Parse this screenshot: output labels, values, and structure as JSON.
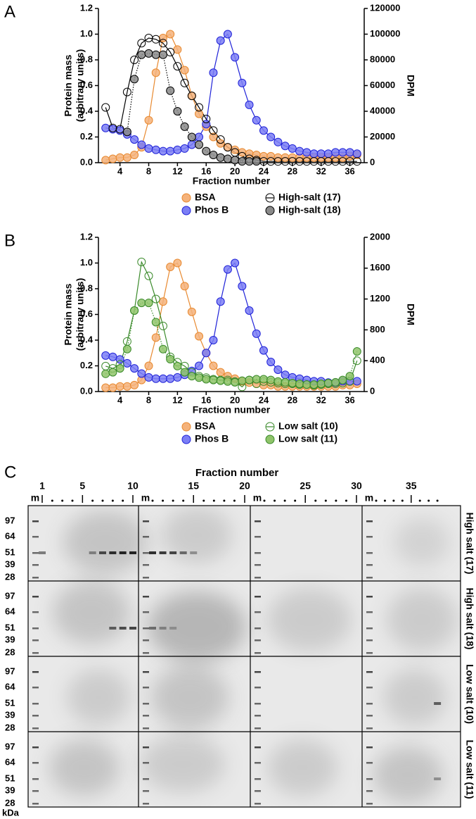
{
  "chart_data": [
    {
      "type": "line",
      "panel": "A",
      "xlabel": "Fraction number",
      "ylabel": [
        "Protein mass",
        "(arbitrary units)"
      ],
      "y2label": "DPM",
      "xlim": [
        1,
        38
      ],
      "xticks": [
        4,
        8,
        12,
        16,
        20,
        24,
        28,
        32,
        36
      ],
      "ylim": [
        0,
        1.2
      ],
      "yticks": [
        {
          "value": 0,
          "label": "0.0"
        },
        0.2,
        0.4,
        0.6,
        0.8,
        {
          "value": 1,
          "label": "1.0"
        },
        1.2
      ],
      "y2lim": [
        0,
        120000
      ],
      "y2ticks": [
        0,
        20000,
        40000,
        60000,
        80000,
        100000,
        120000
      ],
      "x": [
        2,
        3,
        4,
        5,
        6,
        7,
        8,
        9,
        10,
        11,
        12,
        13,
        14,
        15,
        16,
        17,
        18,
        19,
        20,
        21,
        22,
        23,
        24,
        25,
        26,
        27,
        28,
        29,
        30,
        31,
        32,
        33,
        34,
        35,
        36,
        37
      ],
      "series": [
        {
          "name": "BSA",
          "color": "#e8892f",
          "fill": "#f5b27a",
          "values": [
            0.02,
            0.03,
            0.04,
            0.04,
            0.06,
            0.12,
            0.33,
            0.7,
            0.97,
            1.0,
            0.88,
            0.72,
            0.52,
            0.38,
            0.28,
            0.2,
            0.15,
            0.12,
            0.1,
            0.08,
            0.07,
            0.06,
            0.05,
            0.05,
            0.04,
            0.04,
            0.04,
            0.04,
            0.04,
            0.04,
            0.04,
            0.04,
            0.04,
            0.04,
            0.05,
            0.06
          ]
        },
        {
          "name": "Phos B",
          "color": "#1f22d8",
          "fill": "#7b7ef5",
          "values": [
            0.27,
            0.26,
            0.25,
            0.22,
            0.18,
            0.14,
            0.11,
            0.1,
            0.09,
            0.09,
            0.1,
            0.11,
            0.14,
            0.2,
            0.3,
            0.7,
            0.95,
            1.0,
            0.82,
            0.62,
            0.45,
            0.33,
            0.25,
            0.2,
            0.16,
            0.13,
            0.11,
            0.09,
            0.08,
            0.07,
            0.07,
            0.07,
            0.08,
            0.08,
            0.08,
            0.07
          ]
        },
        {
          "name": "High-salt (17)",
          "color": "#000000",
          "fill": "none",
          "axis": "y2",
          "values": [
            43000,
            27000,
            26000,
            55000,
            80000,
            93000,
            97000,
            96000,
            93000,
            86000,
            75000,
            62000,
            52000,
            43000,
            34000,
            25000,
            18000,
            12000,
            8000,
            5000,
            3000,
            2000,
            1000,
            1000,
            1000,
            1000,
            1000,
            1000,
            1000,
            1000,
            1000,
            1000,
            1000,
            1000,
            1000,
            1000
          ]
        },
        {
          "name": "High-salt (18)",
          "color": "#000000",
          "fill": "#8a8a8a",
          "axis": "y2",
          "dash": "dotted",
          "values": [
            null,
            null,
            null,
            24000,
            65000,
            84000,
            85000,
            84000,
            84000,
            56000,
            40000,
            28000,
            20000,
            14000,
            9000,
            6000,
            4000,
            3000,
            2000,
            1000,
            1000,
            1000,
            null,
            null,
            null,
            null,
            null,
            null,
            null,
            null,
            null,
            null,
            null,
            null,
            null,
            null
          ]
        }
      ]
    },
    {
      "type": "line",
      "panel": "B",
      "xlabel": "Fraction number",
      "ylabel": [
        "Protein mass",
        "(arbitrary units)"
      ],
      "y2label": "DPM",
      "xlim": [
        1,
        38
      ],
      "xticks": [
        4,
        8,
        12,
        16,
        20,
        24,
        28,
        32,
        36
      ],
      "ylim": [
        0,
        1.2
      ],
      "yticks": [
        {
          "value": 0,
          "label": "0.0"
        },
        0.2,
        0.4,
        0.6,
        0.8,
        {
          "value": 1,
          "label": "1.0"
        },
        1.2
      ],
      "y2lim": [
        0,
        2000
      ],
      "y2ticks": [
        0,
        400,
        800,
        1200,
        1600,
        2000
      ],
      "x": [
        2,
        3,
        4,
        5,
        6,
        7,
        8,
        9,
        10,
        11,
        12,
        13,
        14,
        15,
        16,
        17,
        18,
        19,
        20,
        21,
        22,
        23,
        24,
        25,
        26,
        27,
        28,
        29,
        30,
        31,
        32,
        33,
        34,
        35,
        36,
        37
      ],
      "series": [
        {
          "name": "BSA",
          "color": "#e8892f",
          "fill": "#f5b27a",
          "values": [
            0.03,
            0.03,
            0.04,
            0.04,
            0.05,
            0.09,
            0.2,
            0.42,
            0.7,
            0.97,
            1.0,
            0.82,
            0.62,
            0.43,
            0.3,
            0.2,
            0.15,
            0.12,
            0.1,
            0.08,
            0.07,
            0.06,
            0.05,
            0.05,
            0.04,
            0.04,
            0.04,
            0.04,
            0.04,
            0.04,
            0.04,
            0.04,
            0.04,
            0.05,
            0.05,
            0.06
          ]
        },
        {
          "name": "Phos B",
          "color": "#1f22d8",
          "fill": "#7b7ef5",
          "values": [
            0.28,
            0.27,
            0.25,
            0.22,
            0.18,
            0.14,
            0.11,
            0.1,
            0.1,
            0.1,
            0.11,
            0.13,
            0.16,
            0.2,
            0.3,
            0.4,
            0.7,
            0.95,
            1.0,
            0.82,
            0.63,
            0.45,
            0.32,
            0.23,
            0.17,
            0.13,
            0.11,
            0.1,
            0.09,
            0.08,
            0.08,
            0.07,
            0.07,
            0.08,
            0.08,
            0.08
          ]
        },
        {
          "name": "Low salt (10)",
          "color": "#3a8a2a",
          "fill": "none",
          "axis": "y2",
          "values": [
            330,
            300,
            350,
            650,
            1050,
            1680,
            1500,
            1200,
            850,
            450,
            380,
            330,
            250,
            200,
            180,
            160,
            150,
            150,
            130,
            60,
            150,
            100,
            130,
            120,
            110,
            100,
            100,
            90,
            90,
            80,
            90,
            100,
            100,
            110,
            130,
            400
          ]
        },
        {
          "name": "Low salt (11)",
          "color": "#3a8a2a",
          "fill": "#8fc46a",
          "axis": "y2",
          "dash": "dotted",
          "values": [
            230,
            250,
            300,
            550,
            1050,
            1150,
            1150,
            900,
            550,
            420,
            330,
            250,
            200,
            180,
            160,
            150,
            140,
            130,
            120,
            140,
            150,
            160,
            160,
            150,
            130,
            120,
            110,
            100,
            90,
            90,
            100,
            110,
            120,
            150,
            200,
            520
          ]
        }
      ]
    }
  ],
  "gel": {
    "panel": "C",
    "title": "Fraction number",
    "lanes": [
      1,
      5,
      10,
      15,
      20,
      25,
      30,
      35
    ],
    "marker_label": "m",
    "mw": [
      97,
      64,
      51,
      39,
      28
    ],
    "unit": "kDa",
    "rows": [
      "High salt (17)",
      "High salt (18)",
      "Low salt (10)",
      "Low salt (11)"
    ]
  }
}
